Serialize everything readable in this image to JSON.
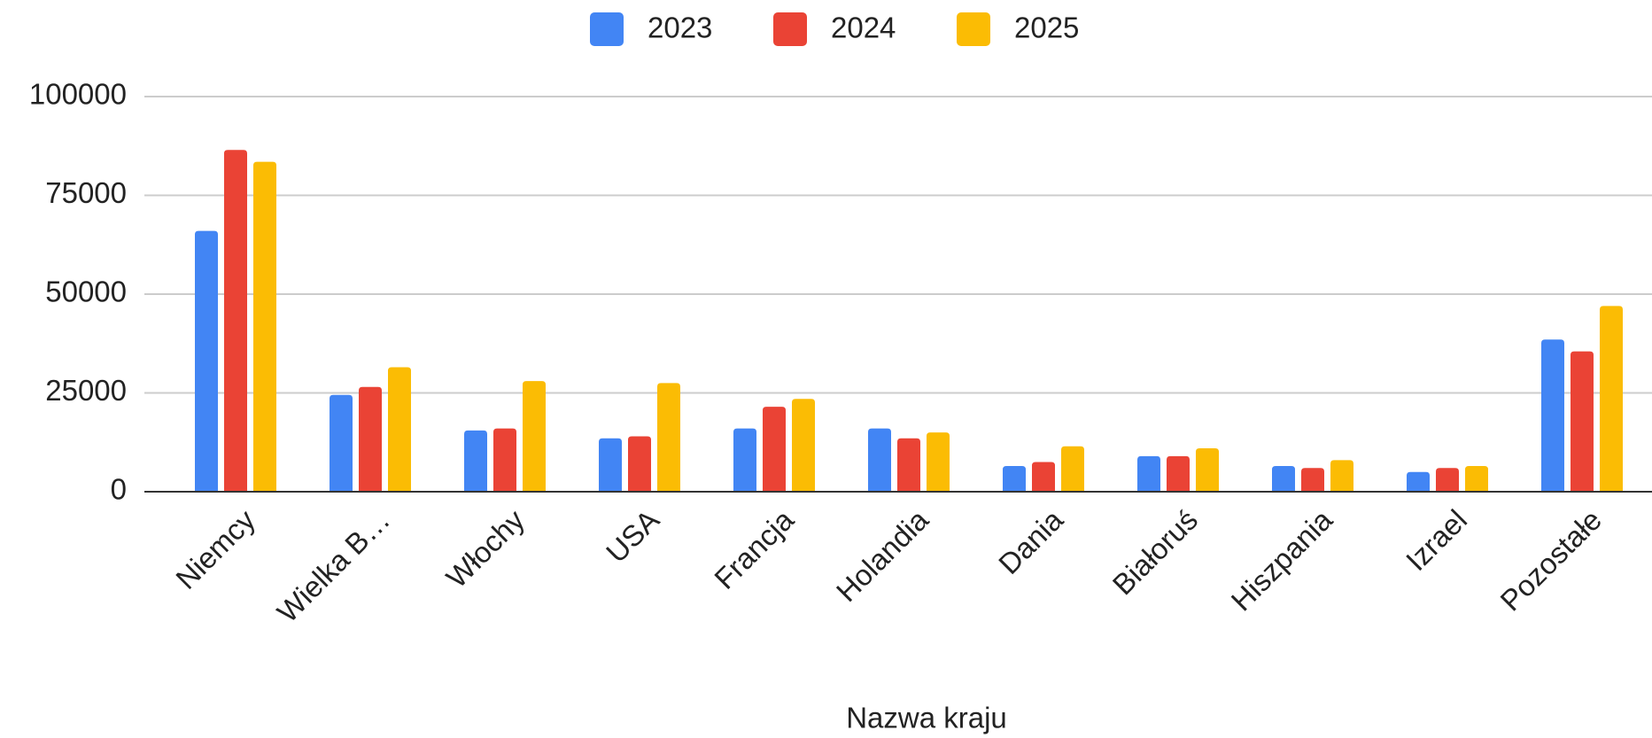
{
  "chart_data": {
    "type": "bar",
    "categories": [
      "Niemcy",
      "Wielka B…",
      "Włochy",
      "USA",
      "Francja",
      "Holandia",
      "Dania",
      "Białoruś",
      "Hiszpania",
      "Izrael",
      "Pozostałe"
    ],
    "series": [
      {
        "name": "2023",
        "color": "#4285f4",
        "values": [
          66000,
          24500,
          15500,
          13500,
          16000,
          16000,
          6500,
          9000,
          6500,
          5000,
          38500
        ]
      },
      {
        "name": "2024",
        "color": "#ea4335",
        "values": [
          86500,
          26500,
          16000,
          14000,
          21500,
          13500,
          7500,
          9000,
          6000,
          6000,
          35500
        ]
      },
      {
        "name": "2025",
        "color": "#fbbc04",
        "values": [
          83500,
          31500,
          28000,
          27500,
          23500,
          15000,
          11500,
          11000,
          8000,
          6500,
          47000
        ]
      }
    ],
    "x_label": "Nazwa kraju",
    "ylim": [
      0,
      100000
    ],
    "yticks": [
      0,
      25000,
      50000,
      75000,
      100000
    ],
    "grid": true,
    "legend": "top"
  }
}
